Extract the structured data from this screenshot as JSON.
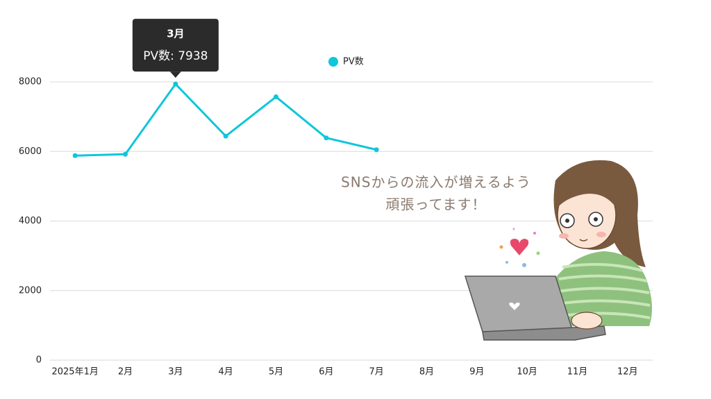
{
  "chart_data": {
    "type": "line",
    "categories": [
      "2025年1月",
      "2月",
      "3月",
      "4月",
      "5月",
      "6月",
      "7月",
      "8月",
      "9月",
      "10月",
      "11月",
      "12月"
    ],
    "series": [
      {
        "name": "PV数",
        "color": "#0fc6da",
        "values": [
          5880,
          5920,
          7938,
          6440,
          7570,
          6390,
          6050,
          null,
          null,
          null,
          null,
          null
        ]
      }
    ],
    "ylim": [
      0,
      8000
    ],
    "yticks": [
      0,
      2000,
      4000,
      6000,
      8000
    ],
    "grid": true,
    "legend": "top",
    "tooltip": {
      "title": "3月",
      "text": "PV数: 7938"
    },
    "annotation": [
      "SNSからの流入が増えるよう",
      "頑張ってます！"
    ]
  }
}
